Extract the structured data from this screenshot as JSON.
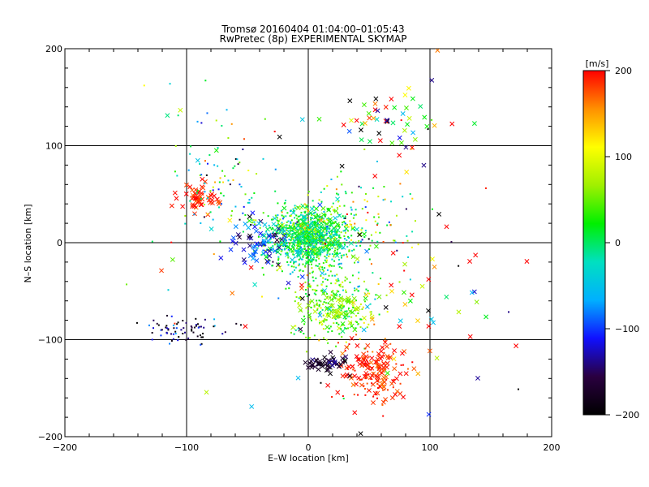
{
  "chart_data": {
    "type": "scatter",
    "title": "Tromsø 20160404 01:04:00–01:05:43",
    "subtitle": "RwPretec (8p) EXPERIMENTAL SKYMAP",
    "xlabel": "E–W location [km]",
    "ylabel": "N–S location [km]",
    "xlim": [
      -200,
      200
    ],
    "ylim": [
      -200,
      200
    ],
    "x_ticks": [
      "−200",
      "−100",
      "0",
      "100",
      "200"
    ],
    "y_ticks": [
      "200",
      "100",
      "0",
      "−100",
      "−200"
    ],
    "grid": "major-ticks",
    "colorbar": {
      "label": "[m/s]",
      "min": -200,
      "max": 200,
      "ticks": [
        "200",
        "100",
        "0",
        "−100",
        "−200"
      ],
      "colormap": [
        "#000000",
        "#2a0040",
        "#1010ff",
        "#00b0ff",
        "#00e0c0",
        "#00f000",
        "#a0f000",
        "#ffff00",
        "#ff9000",
        "#ff0000"
      ]
    },
    "point_groups": [
      {
        "marker": "dot",
        "cx": 0,
        "cy": 5,
        "sx": 18,
        "sy": 16,
        "n": 900,
        "vmean": 10,
        "vsd": 40
      },
      {
        "marker": "x",
        "cx": 0,
        "cy": 10,
        "sx": 16,
        "sy": 14,
        "n": 160,
        "vmean": 5,
        "vsd": 35
      },
      {
        "marker": "x",
        "cx": -40,
        "cy": 0,
        "sx": 12,
        "sy": 12,
        "n": 60,
        "vmean": -110,
        "vsd": 30
      },
      {
        "marker": "dot",
        "cx": 20,
        "cy": -60,
        "sx": 18,
        "sy": 20,
        "n": 250,
        "vmean": 40,
        "vsd": 35
      },
      {
        "marker": "x",
        "cx": 25,
        "cy": -70,
        "sx": 14,
        "sy": 10,
        "n": 60,
        "vmean": 60,
        "vsd": 25
      },
      {
        "marker": "x",
        "cx": 55,
        "cy": -130,
        "sx": 15,
        "sy": 15,
        "n": 110,
        "vmean": 190,
        "vsd": 15
      },
      {
        "marker": "dot",
        "cx": 55,
        "cy": -135,
        "sx": 14,
        "sy": 20,
        "n": 80,
        "vmean": 185,
        "vsd": 15
      },
      {
        "marker": "x",
        "cx": 15,
        "cy": -125,
        "sx": 8,
        "sy": 4,
        "n": 50,
        "vmean": -170,
        "vsd": 20
      },
      {
        "marker": "dot",
        "cx": -100,
        "cy": -90,
        "sx": 20,
        "sy": 7,
        "n": 70,
        "vmean": -160,
        "vsd": 45
      },
      {
        "marker": "x",
        "cx": -90,
        "cy": 45,
        "sx": 10,
        "sy": 8,
        "n": 55,
        "vmean": 190,
        "vsd": 15
      },
      {
        "marker": "dot",
        "cx": -70,
        "cy": 60,
        "sx": 18,
        "sy": 30,
        "n": 80,
        "vmean": -20,
        "vsd": 90
      },
      {
        "marker": "x",
        "cx": 65,
        "cy": 125,
        "sx": 20,
        "sy": 15,
        "n": 50,
        "vmean": 40,
        "vsd": 150
      },
      {
        "marker": "x",
        "cx": 85,
        "cy": -70,
        "sx": 40,
        "sy": 35,
        "n": 40,
        "vmean": 100,
        "vsd": 130
      },
      {
        "marker": "dot",
        "cx": 30,
        "cy": 20,
        "sx": 30,
        "sy": 25,
        "n": 150,
        "vmean": 40,
        "vsd": 80
      },
      {
        "marker": "x",
        "cx": 0,
        "cy": 0,
        "sx": 90,
        "sy": 80,
        "n": 60,
        "vmean": 0,
        "vsd": 150
      },
      {
        "marker": "dot",
        "cx": 0,
        "cy": 0,
        "sx": 100,
        "sy": 90,
        "n": 60,
        "vmean": 0,
        "vsd": 150
      }
    ]
  }
}
